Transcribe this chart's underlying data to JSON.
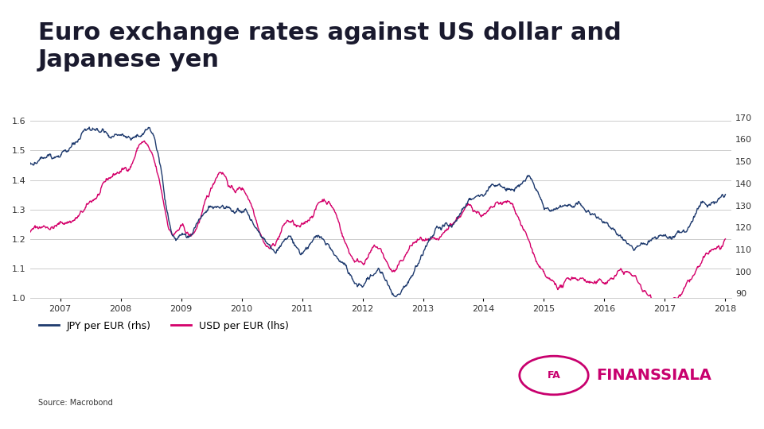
{
  "title": "Euro exchange rates against US dollar and\nJapanese yen",
  "title_fontsize": 22,
  "title_color": "#1a1a2e",
  "legend_labels": [
    "JPY per EUR (rhs)",
    "USD per EUR (lhs)"
  ],
  "source_text": "Source: Macrobond",
  "jpy_color": "#1e3a6e",
  "usd_color": "#d4006a",
  "background_color": "#ffffff",
  "lhs_ylim": [
    1.0,
    1.65
  ],
  "rhs_ylim": [
    88,
    175
  ],
  "lhs_yticks": [
    1.0,
    1.1,
    1.2,
    1.3,
    1.4,
    1.5,
    1.6
  ],
  "rhs_yticks": [
    90,
    100,
    110,
    120,
    130,
    140,
    150,
    160,
    170
  ],
  "grid_color": "#cccccc",
  "finanssiala_color": "#c8006e"
}
